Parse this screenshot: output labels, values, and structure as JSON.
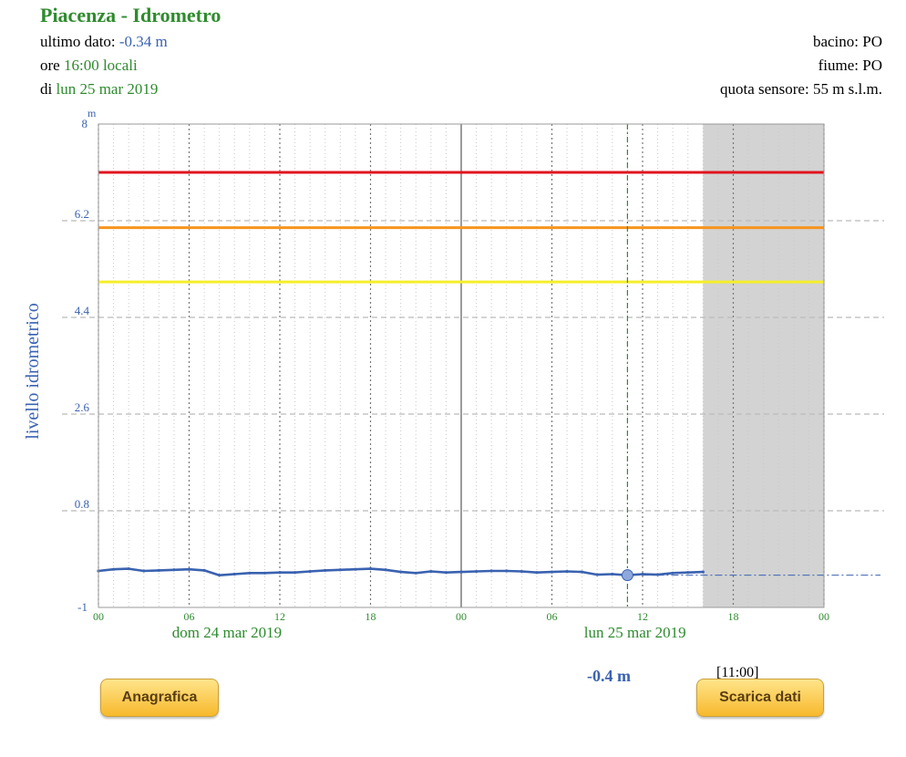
{
  "header": {
    "title": "Piacenza - Idrometro",
    "last_value_label": "ultimo dato:",
    "last_value": "-0.34 m",
    "time_label": "ore",
    "time_value": "16:00 locali",
    "date_label": "di",
    "date_value": "lun 25 mar 2019",
    "basin_label": "bacino:",
    "basin_value": "PO",
    "river_label": "fiume:",
    "river_value": "PO",
    "sensor_label": "quota sensore:",
    "sensor_value": "55 m s.l.m."
  },
  "readout": {
    "value": "-0.4 m",
    "time": "[11:00]"
  },
  "buttons": {
    "registry": "Anagrafica",
    "download": "Scarica dati"
  },
  "colors": {
    "series": "#3a62b0",
    "threshold_red": "#e0141e",
    "threshold_orange": "#f7941d",
    "threshold_yellow": "#f5ee2a",
    "forecast_area": "#d3d3d3",
    "tick_green": "#2e8b2e"
  },
  "chart_data": {
    "type": "line",
    "ylabel": "livello idrometrico",
    "yunit": "m",
    "ylim": [
      -1,
      8
    ],
    "yticks": [
      "8",
      "6.2",
      "4.4",
      "2.6",
      "0.8",
      "-1"
    ],
    "xlim_hours": [
      0,
      48
    ],
    "xticks": [
      "00",
      "06",
      "12",
      "18",
      "00",
      "06",
      "12",
      "18",
      "00"
    ],
    "day_labels": [
      "dom 24 mar 2019",
      "lun 25 mar 2019"
    ],
    "grid": true,
    "thresholds": [
      {
        "level": 7.1,
        "color": "red"
      },
      {
        "level": 6.07,
        "color": "orange"
      },
      {
        "level": 5.06,
        "color": "yellow"
      }
    ],
    "shaded_from_hour": 40,
    "cursor_hour": 35,
    "cursor_value": -0.4,
    "reference_level": -0.4,
    "series": [
      {
        "x": [
          0,
          1,
          2,
          3,
          4,
          5,
          6,
          7,
          8,
          9,
          10,
          11,
          12,
          13,
          14,
          15,
          16,
          17,
          18,
          19,
          20,
          21,
          22,
          23,
          24,
          25,
          26,
          27,
          28,
          29,
          30,
          31,
          32,
          33,
          34,
          35,
          36,
          37,
          38,
          39,
          40
        ],
        "values": [
          -0.32,
          -0.29,
          -0.28,
          -0.32,
          -0.31,
          -0.3,
          -0.29,
          -0.31,
          -0.4,
          -0.38,
          -0.36,
          -0.36,
          -0.35,
          -0.35,
          -0.33,
          -0.31,
          -0.3,
          -0.29,
          -0.28,
          -0.3,
          -0.34,
          -0.36,
          -0.33,
          -0.35,
          -0.34,
          -0.33,
          -0.32,
          -0.32,
          -0.33,
          -0.35,
          -0.34,
          -0.33,
          -0.34,
          -0.39,
          -0.38,
          -0.4,
          -0.38,
          -0.39,
          -0.36,
          -0.35,
          -0.34
        ]
      }
    ]
  }
}
